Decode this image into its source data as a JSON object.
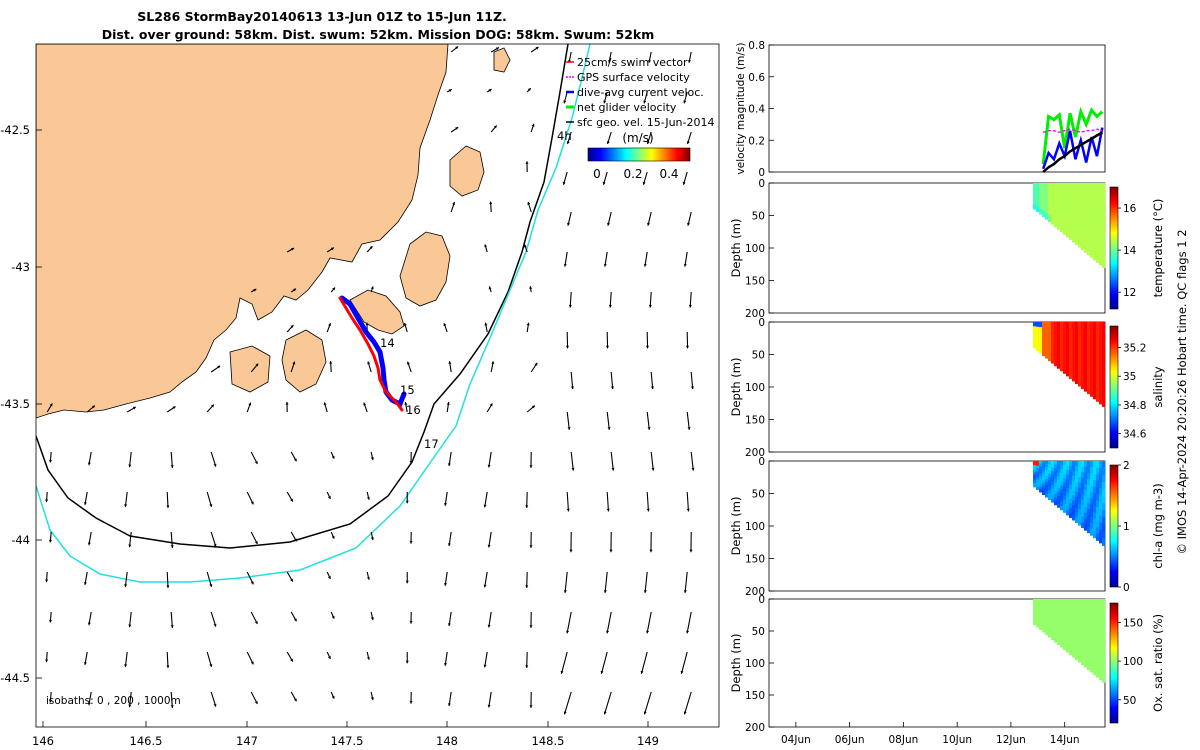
{
  "title": {
    "line1": "SL286 StormBay20140613 13-Jun 01Z to 15-Jun 11Z.",
    "line2": "Dist. over ground: 58km. Dist. swum: 52km. Mission DOG: 58km. Swum: 52km"
  },
  "map": {
    "lon_ticks": [
      "146",
      "146.5",
      "147",
      "147.5",
      "148",
      "148.5",
      "149"
    ],
    "lat_ticks": [
      "-42.5",
      "-43",
      "-43.5",
      "-44",
      "-44.5"
    ],
    "isobath_note": "isobaths: 0 , 200 , 1000m",
    "track_labels": [
      "14",
      "15",
      "16",
      "17",
      "4h"
    ],
    "legend": [
      {
        "label": "25cm/s swim vector",
        "color": "#ff0000"
      },
      {
        "label": "GPS surface velocity",
        "color": "#ff00ff"
      },
      {
        "label": "dive-avg current veloc.",
        "color": "#0000ff"
      },
      {
        "label": "net glider velocity",
        "color": "#00ee00"
      },
      {
        "label": "sfc geo. vel. 15-Jun-2014",
        "color": "#000000"
      }
    ],
    "colorbar_title": "(m/s)",
    "colorbar_ticks": [
      "0",
      "0.2",
      "0.4"
    ],
    "colors": {
      "land": "#f9c896",
      "isobath_200": "#000000",
      "isobath_1000": "#20e0e0",
      "track": "#ff0000"
    }
  },
  "chart_data": [
    {
      "type": "line",
      "ylabel": "velocity magnitude (m/s)",
      "yticks": [
        "0",
        "0.2",
        "0.4",
        "0.6",
        "0.8"
      ],
      "ylim": [
        0,
        0.8
      ],
      "x_days": [
        13.2,
        13.4,
        13.6,
        13.8,
        14.0,
        14.2,
        14.4,
        14.6,
        14.8,
        15.0,
        15.2,
        15.4
      ],
      "series": [
        {
          "name": "net glider velocity",
          "color": "#00ee00",
          "values": [
            0.05,
            0.35,
            0.33,
            0.36,
            0.15,
            0.37,
            0.22,
            0.38,
            0.3,
            0.39,
            0.35,
            0.38
          ]
        },
        {
          "name": "dive-avg current veloc.",
          "color": "#0000ff",
          "values": [
            0.02,
            0.12,
            0.08,
            0.18,
            0.1,
            0.26,
            0.08,
            0.2,
            0.06,
            0.22,
            0.1,
            0.28
          ]
        },
        {
          "name": "sfc geo. vel.",
          "color": "#000000",
          "values": [
            0.0,
            0.03,
            0.05,
            0.08,
            0.1,
            0.13,
            0.15,
            0.17,
            0.19,
            0.21,
            0.23,
            0.25
          ]
        },
        {
          "name": "GPS surface velocity",
          "color": "#ff00ff",
          "values": [
            0.25,
            0.26,
            0.26,
            0.25,
            0.26,
            0.27,
            0.26,
            0.25,
            0.26,
            0.26,
            0.27,
            0.26
          ]
        }
      ]
    },
    {
      "type": "heatmap",
      "ylabel": "Depth (m)",
      "cbar_label": "temperature (°C)",
      "yticks": [
        "0",
        "50",
        "100",
        "150",
        "200"
      ],
      "cbar_ticks": [
        "12",
        "14",
        "16"
      ],
      "cbar_range": [
        11.2,
        17
      ]
    },
    {
      "type": "heatmap",
      "ylabel": "Depth (m)",
      "cbar_label": "salinity",
      "yticks": [
        "0",
        "50",
        "100",
        "150",
        "200"
      ],
      "cbar_ticks": [
        "34.6",
        "34.8",
        "35",
        "35.2"
      ],
      "cbar_range": [
        34.5,
        35.35
      ]
    },
    {
      "type": "heatmap",
      "ylabel": "Depth (m)",
      "cbar_label": "chl-a (mg m-3)",
      "yticks": [
        "0",
        "50",
        "100",
        "150",
        "200"
      ],
      "cbar_ticks": [
        "0",
        "1",
        "2"
      ],
      "cbar_range": [
        0,
        2
      ]
    },
    {
      "type": "heatmap",
      "ylabel": "Depth (m)",
      "cbar_label": "Ox. sat. ratio (%)",
      "yticks": [
        "0",
        "50",
        "100",
        "150",
        "200"
      ],
      "cbar_ticks": [
        "50",
        "100",
        "150"
      ],
      "cbar_range": [
        20,
        175
      ],
      "xticks": [
        "04Jun",
        "06Jun",
        "08Jun",
        "10Jun",
        "12Jun",
        "14Jun"
      ]
    }
  ],
  "side_note": "© IMOS 14-Apr-2024 20:20:26 Hobart time. QC flags 1 2"
}
